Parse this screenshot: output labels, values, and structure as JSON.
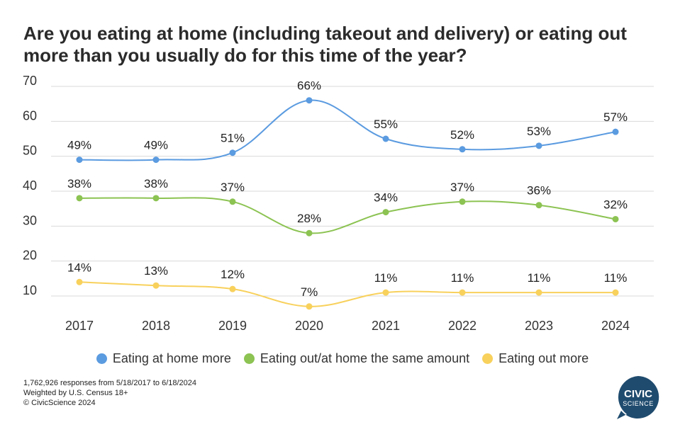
{
  "title": "Are you eating at home (including takeout and delivery) or eating out more than you usually do for this time of the year?",
  "chart_data": {
    "type": "line",
    "x": [
      "2017",
      "2018",
      "2019",
      "2020",
      "2021",
      "2022",
      "2023",
      "2024"
    ],
    "ylim": [
      10,
      70
    ],
    "yticks": [
      10,
      20,
      30,
      40,
      50,
      60,
      70
    ],
    "grid": true,
    "legend_position": "bottom",
    "series": [
      {
        "name": "Eating at home more",
        "color": "#5b9be0",
        "values": [
          49,
          49,
          51,
          66,
          55,
          52,
          53,
          57
        ],
        "labels": [
          "49%",
          "49%",
          "51%",
          "66%",
          "55%",
          "52%",
          "53%",
          "57%"
        ]
      },
      {
        "name": "Eating out/at home the same amount",
        "color": "#8cc352",
        "values": [
          38,
          38,
          37,
          28,
          34,
          37,
          36,
          32
        ],
        "labels": [
          "38%",
          "38%",
          "37%",
          "28%",
          "34%",
          "37%",
          "36%",
          "32%"
        ]
      },
      {
        "name": "Eating out more",
        "color": "#f8d15c",
        "values": [
          14,
          13,
          12,
          7,
          11,
          11,
          11,
          11
        ],
        "labels": [
          "14%",
          "13%",
          "12%",
          "7%",
          "11%",
          "11%",
          "11%",
          "11%"
        ]
      }
    ]
  },
  "footnotes": {
    "line1": "1,762,926 responses from 5/18/2017 to 6/18/2024",
    "line2": "Weighted by U.S. Census 18+",
    "line3": "© CivicScience 2024"
  },
  "logo": {
    "line1": "CIVIC",
    "line2": "SCIENCE",
    "color": "#1f4b6e"
  }
}
